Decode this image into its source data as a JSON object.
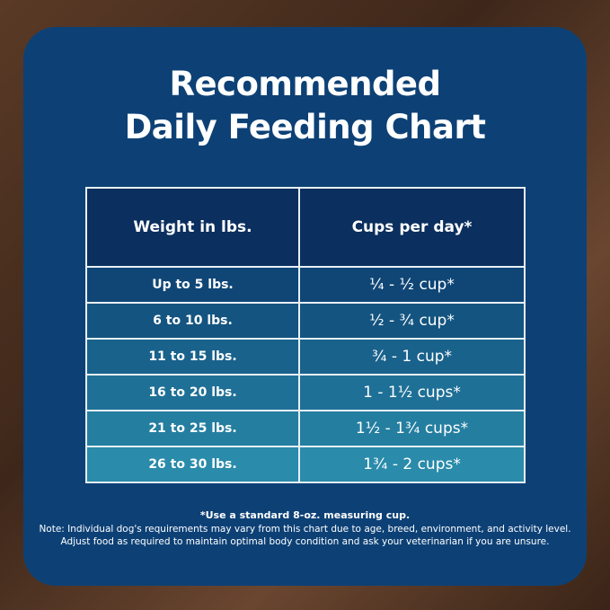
{
  "title": {
    "line1": "Recommended",
    "line2": "Daily Feeding Chart"
  },
  "table": {
    "headers": [
      "Weight in lbs.",
      "Cups per day*"
    ],
    "rows": [
      {
        "weight": "Up to 5 lbs.",
        "cups": "¼ - ½ cup*"
      },
      {
        "weight": "6 to 10 lbs.",
        "cups": "½ - ¾ cup*"
      },
      {
        "weight": "11 to 15 lbs.",
        "cups": "¾ - 1 cup*"
      },
      {
        "weight": "16 to 20 lbs.",
        "cups": "1 - 1½ cups*"
      },
      {
        "weight": "21 to 25 lbs.",
        "cups": "1½ - 1¾ cups*"
      },
      {
        "weight": "26 to 30 lbs.",
        "cups": "1¾ - 2 cups*"
      }
    ],
    "row_colors": [
      "#0f4676",
      "#145480",
      "#19628c",
      "#1f7096",
      "#247ea0",
      "#2a8baa"
    ]
  },
  "footer": {
    "footnote": "*Use a standard 8-oz. measuring cup.",
    "note1": "Note: Individual dog's requirements may vary from this chart due to age, breed, environment, and activity level.",
    "note2": "Adjust food as required to maintain optimal body condition and ask your veterinarian if you are unsure."
  }
}
